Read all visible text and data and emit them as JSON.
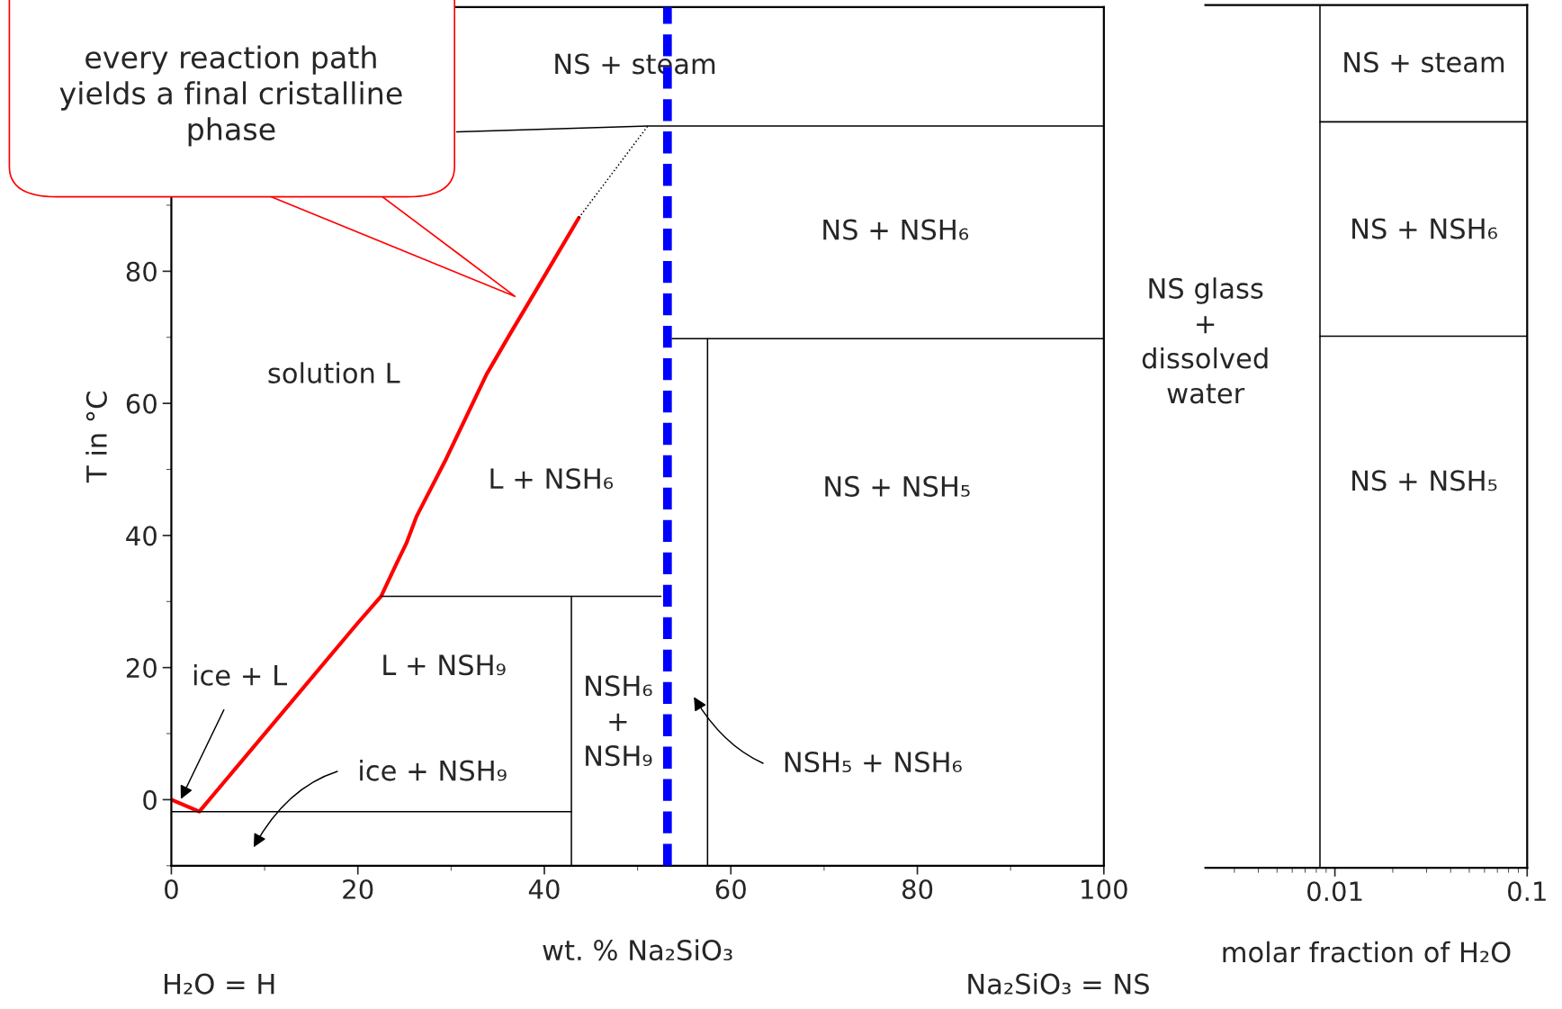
{
  "chart_data": [
    {
      "type": "line",
      "xlabel": "wt. % Na₂SiO₃",
      "ylabel": "T in °C",
      "xlim": [
        0,
        100
      ],
      "ylim": [
        -10,
        120
      ],
      "xticks": [
        0,
        20,
        40,
        60,
        80,
        100
      ],
      "yticks": [
        0,
        20,
        40,
        60,
        80
      ],
      "grid": false,
      "series": [
        {
          "color": "#ff0000",
          "x": [
            0,
            3.0,
            19.9,
            22.5,
            24.1,
            25.2,
            26.3,
            29.4,
            33.8,
            36.4,
            39.1,
            43.7
          ],
          "values": [
            0,
            -1.8,
            26.6,
            30.8,
            35.6,
            38.8,
            42.9,
            51.4,
            64.4,
            70.7,
            77.1,
            88.1
          ]
        },
        {
          "color": "#000000",
          "line_style": "dotted",
          "x": [
            43.7,
            51.1
          ],
          "values": [
            88.1,
            102
          ]
        },
        {
          "color": "#000000",
          "x": [
            30.6,
            51.1,
            100
          ],
          "values": [
            101.1,
            102,
            102
          ]
        },
        {
          "color": "#000000",
          "x": [
            22.5,
            52.5
          ],
          "values": [
            30.8,
            30.8
          ]
        },
        {
          "color": "#000000",
          "x": [
            42.9,
            42.9
          ],
          "values": [
            30.8,
            -10
          ]
        },
        {
          "color": "#000000",
          "x": [
            0,
            42.9
          ],
          "values": [
            -1.8,
            -1.8
          ]
        },
        {
          "color": "#000000",
          "x": [
            53.7,
            100
          ],
          "values": [
            69.8,
            69.8
          ]
        },
        {
          "color": "#000000",
          "x": [
            57.5,
            57.5
          ],
          "values": [
            69.8,
            -10
          ]
        }
      ],
      "ref_lines": [
        {
          "axis": "x",
          "value": 53.2,
          "color": "#0000ff",
          "line_style": "dashed"
        }
      ],
      "annotations": [
        "ice + L",
        "ice + NSH₉",
        "NSH₅ + NSH₆",
        "NS + steam",
        "NS + NSH₆",
        "solution L",
        "L + NSH₆",
        "NS + NSH₅",
        "L + NSH₉",
        "NSH₆\n+\nNSH₉",
        "H₂O = H",
        "Na₂SiO₃ = NS",
        "every reaction path\nyields a final cristalline\nphase"
      ]
    },
    {
      "type": "line",
      "xlabel": "molar fraction of H₂O",
      "log": "x",
      "xlim": [
        0.00212,
        0.1
      ],
      "ylim": [
        -10,
        120
      ],
      "xticks": [
        0.01,
        0.1
      ],
      "tick_labels": "x",
      "grid": false,
      "series": [
        {
          "color": "#000000",
          "x": [
            0.00836,
            0.00836
          ],
          "values": [
            -10,
            120
          ]
        },
        {
          "color": "#000000",
          "x": [
            0.00836,
            0.1
          ],
          "values": [
            102.4,
            102.4
          ]
        },
        {
          "color": "#000000",
          "x": [
            0.00836,
            0.1
          ],
          "values": [
            70.1,
            70.1
          ]
        }
      ],
      "annotations": [
        "NS + steam",
        "NS + NSH₆",
        "NS + NSH₅",
        "NS glass\n+\ndissolved\nwater"
      ]
    }
  ]
}
